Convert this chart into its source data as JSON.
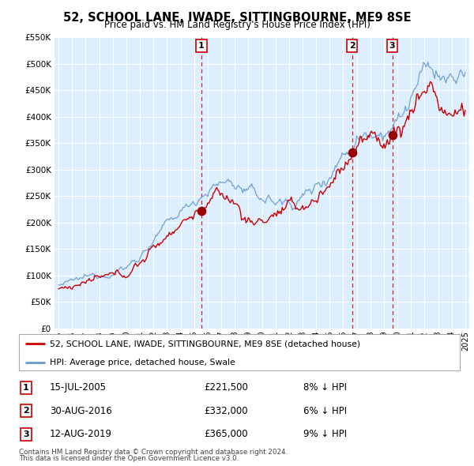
{
  "title": "52, SCHOOL LANE, IWADE, SITTINGBOURNE, ME9 8SE",
  "subtitle": "Price paid vs. HM Land Registry's House Price Index (HPI)",
  "legend_line1": "52, SCHOOL LANE, IWADE, SITTINGBOURNE, ME9 8SE (detached house)",
  "legend_line2": "HPI: Average price, detached house, Swale",
  "footer1": "Contains HM Land Registry data © Crown copyright and database right 2024.",
  "footer2": "This data is licensed under the Open Government Licence v3.0.",
  "transactions": [
    {
      "num": 1,
      "date": "15-JUL-2005",
      "price": "£221,500",
      "pct": "8%",
      "dir": "↓"
    },
    {
      "num": 2,
      "date": "30-AUG-2016",
      "price": "£332,000",
      "pct": "6%",
      "dir": "↓"
    },
    {
      "num": 3,
      "date": "12-AUG-2019",
      "price": "£365,000",
      "pct": "9%",
      "dir": "↓"
    }
  ],
  "vline_dates": [
    2005.54,
    2016.66,
    2019.62
  ],
  "dot_dates": [
    2005.54,
    2016.66,
    2019.62
  ],
  "dot_prices": [
    221500,
    332000,
    365000
  ],
  "hpi_color": "#6699cc",
  "price_color": "#cc0000",
  "dot_color": "#990000",
  "vline_color": "#cc0000",
  "plot_bg": "#ddeeff",
  "ylim": [
    0,
    550000
  ],
  "xlim_start": 1994.7,
  "xlim_end": 2025.3,
  "yticks": [
    0,
    50000,
    100000,
    150000,
    200000,
    250000,
    300000,
    350000,
    400000,
    450000,
    500000,
    550000
  ]
}
